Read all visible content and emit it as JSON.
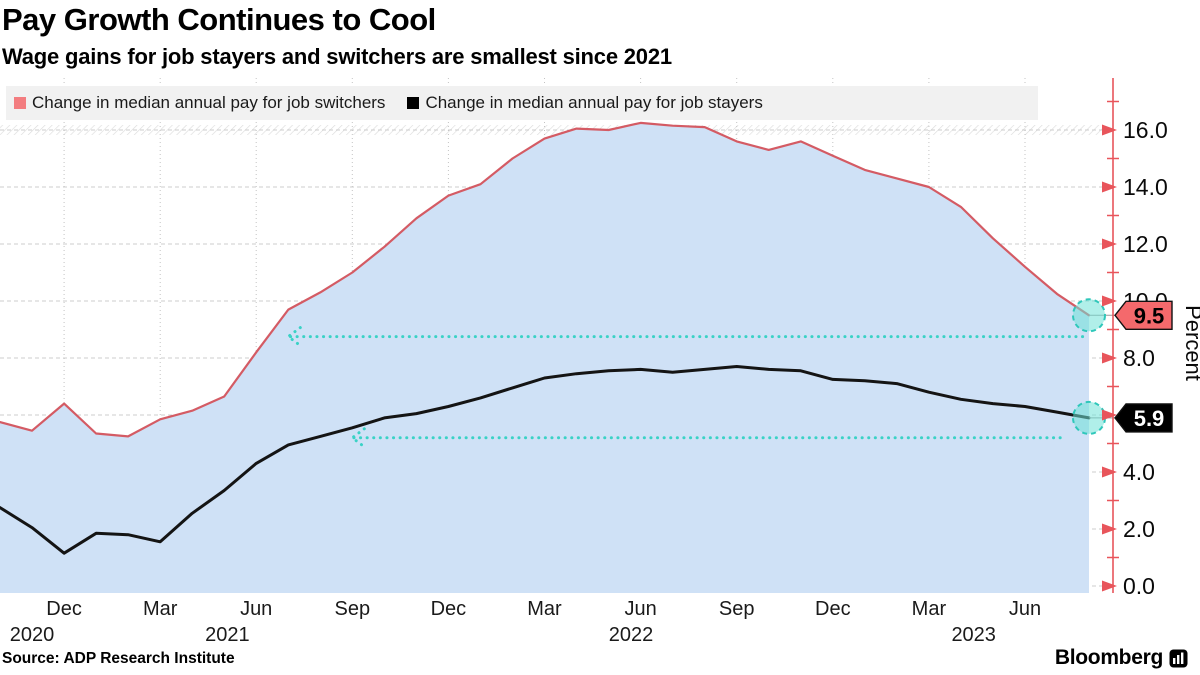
{
  "header": {
    "title": "Pay Growth Continues to Cool",
    "subtitle": "Wage gains for job stayers and switchers are smallest since 2021"
  },
  "footer": {
    "source": "Source: ADP Research Institute",
    "brand": "Bloomberg"
  },
  "chart_data": {
    "type": "line",
    "title": "Pay Growth Continues to Cool",
    "subtitle": "Wage gains for job stayers and switchers are smallest since 2021",
    "ylabel": "Percent",
    "ylim": [
      0,
      17.6
    ],
    "grid": true,
    "legend_position": "top",
    "months": [
      "Oct 2020",
      "Nov 2020",
      "Dec 2020",
      "Jan 2021",
      "Feb 2021",
      "Mar 2021",
      "Apr 2021",
      "May 2021",
      "Jun 2021",
      "Jul 2021",
      "Aug 2021",
      "Sep 2021",
      "Oct 2021",
      "Nov 2021",
      "Dec 2021",
      "Jan 2022",
      "Feb 2022",
      "Mar 2022",
      "Apr 2022",
      "May 2022",
      "Jun 2022",
      "Jul 2022",
      "Aug 2022",
      "Sep 2022",
      "Oct 2022",
      "Nov 2022",
      "Dec 2022",
      "Jan 2023",
      "Feb 2023",
      "Mar 2023",
      "Apr 2023",
      "May 2023",
      "Jun 2023",
      "Jul 2023",
      "Aug 2023"
    ],
    "series": [
      {
        "name": "Change in median annual pay for job switchers",
        "color": "#d45b64",
        "legend_swatch_color": "#f37d80",
        "line_width": 2.2,
        "end_label": "9.5",
        "end_label_bg": "#f4696c",
        "end_label_color": "#000000",
        "values": [
          5.75,
          5.45,
          6.4,
          5.35,
          5.25,
          5.85,
          6.15,
          6.65,
          8.2,
          9.7,
          10.3,
          11.0,
          11.9,
          12.9,
          13.7,
          14.1,
          15.0,
          15.7,
          16.05,
          16.0,
          16.25,
          16.15,
          16.1,
          15.6,
          15.3,
          15.6,
          15.1,
          14.6,
          14.3,
          14.0,
          13.3,
          12.2,
          11.2,
          10.25,
          9.5
        ]
      },
      {
        "name": "Change in median annual pay for job stayers",
        "color": "#141414",
        "legend_swatch_color": "#000000",
        "line_width": 3,
        "end_label": "5.9",
        "end_label_bg": "#000000",
        "end_label_color": "#ffffff",
        "values": [
          2.75,
          2.05,
          1.15,
          1.85,
          1.8,
          1.55,
          2.55,
          3.35,
          4.3,
          4.95,
          5.25,
          5.55,
          5.9,
          6.05,
          6.3,
          6.6,
          6.95,
          7.3,
          7.45,
          7.55,
          7.6,
          7.5,
          7.6,
          7.7,
          7.6,
          7.55,
          7.25,
          7.2,
          7.1,
          6.8,
          6.55,
          6.4,
          6.3,
          6.1,
          5.9
        ]
      }
    ],
    "area_fill": {
      "series": 0,
      "color": "#cfe1f6"
    },
    "y_axis": {
      "side": "right",
      "color": "#e8555b",
      "major_ticks": [
        0,
        2,
        4,
        6,
        8,
        10,
        12,
        14,
        16
      ],
      "major_tick_labels": [
        "0.0",
        "2.0",
        "4.0",
        "6.0",
        "8.0",
        "10.0",
        "12.0",
        "14.0",
        "16.0"
      ],
      "minor_ticks": [
        1,
        3,
        5,
        7,
        9,
        11,
        13,
        15,
        17
      ]
    },
    "x_ticks": [
      {
        "label": "Dec",
        "month_index": 2
      },
      {
        "label": "Mar",
        "month_index": 5
      },
      {
        "label": "Jun",
        "month_index": 8
      },
      {
        "label": "Sep",
        "month_index": 11
      },
      {
        "label": "Dec",
        "month_index": 14
      },
      {
        "label": "Mar",
        "month_index": 17
      },
      {
        "label": "Jun",
        "month_index": 20
      },
      {
        "label": "Sep",
        "month_index": 23
      },
      {
        "label": "Dec",
        "month_index": 26
      },
      {
        "label": "Mar",
        "month_index": 29
      },
      {
        "label": "Jun",
        "month_index": 32
      }
    ],
    "year_labels": [
      {
        "label": "2020",
        "month_index": 1.0
      },
      {
        "label": "2021",
        "month_index": 7.1
      },
      {
        "label": "2022",
        "month_index": 19.7
      },
      {
        "label": "2023",
        "month_index": 30.4
      }
    ],
    "annotations": {
      "arrows": [
        {
          "series": "switchers",
          "y_value": 8.75,
          "from_month": 9.0,
          "to_month": 33.8,
          "color": "#3ad2c6"
        },
        {
          "series": "stayers",
          "y_value": 5.2,
          "from_month": 11.0,
          "to_month": 33.1,
          "color": "#3ad2c6"
        }
      ],
      "end_marker": {
        "radius": 16,
        "fill": "rgba(111,226,215,0.55)",
        "stroke": "#2fc7ba"
      }
    }
  }
}
